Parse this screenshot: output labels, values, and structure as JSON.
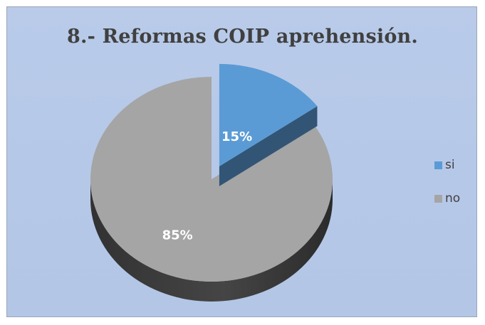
{
  "chart_data": {
    "type": "pie",
    "title": "8.- Reformas COIP aprehensión.",
    "categories": [
      "si",
      "no"
    ],
    "values": [
      15,
      85
    ],
    "data_labels": [
      "15%",
      "85%"
    ],
    "colors": [
      "#5b9bd5",
      "#a5a5a5"
    ],
    "legend_position": "right",
    "style": "3d-exploded"
  }
}
